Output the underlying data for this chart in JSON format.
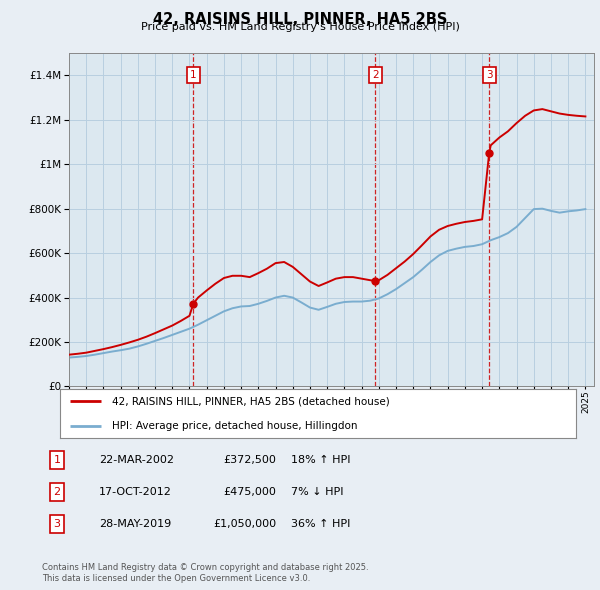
{
  "title": "42, RAISINS HILL, PINNER, HA5 2BS",
  "subtitle": "Price paid vs. HM Land Registry's House Price Index (HPI)",
  "legend_label_red": "42, RAISINS HILL, PINNER, HA5 2BS (detached house)",
  "legend_label_blue": "HPI: Average price, detached house, Hillingdon",
  "footer_line1": "Contains HM Land Registry data © Crown copyright and database right 2025.",
  "footer_line2": "This data is licensed under the Open Government Licence v3.0.",
  "sale_events": [
    {
      "num": 1,
      "date": "22-MAR-2002",
      "price": 372500,
      "pct": "18%",
      "dir": "↑",
      "year_x": 2002.22
    },
    {
      "num": 2,
      "date": "17-OCT-2012",
      "price": 475000,
      "pct": "7%",
      "dir": "↓",
      "year_x": 2012.79
    },
    {
      "num": 3,
      "date": "28-MAY-2019",
      "price": 1050000,
      "pct": "36%",
      "dir": "↑",
      "year_x": 2019.41
    }
  ],
  "red_line_color": "#cc0000",
  "blue_line_color": "#7aadcf",
  "background_color": "#e8eef4",
  "plot_bg_color": "#dce8f0",
  "grid_color": "#b8cfe0",
  "sale_marker_color": "#cc0000",
  "dashed_line_color": "#cc0000",
  "ylim": [
    0,
    1500000
  ],
  "xlim_start": 1995,
  "xlim_end": 2025.5,
  "hpi_data": {
    "years": [
      1995.0,
      1995.5,
      1996.0,
      1996.5,
      1997.0,
      1997.5,
      1998.0,
      1998.5,
      1999.0,
      1999.5,
      2000.0,
      2000.5,
      2001.0,
      2001.5,
      2002.0,
      2002.5,
      2003.0,
      2003.5,
      2004.0,
      2004.5,
      2005.0,
      2005.5,
      2006.0,
      2006.5,
      2007.0,
      2007.5,
      2008.0,
      2008.5,
      2009.0,
      2009.5,
      2010.0,
      2010.5,
      2011.0,
      2011.5,
      2012.0,
      2012.5,
      2013.0,
      2013.5,
      2014.0,
      2014.5,
      2015.0,
      2015.5,
      2016.0,
      2016.5,
      2017.0,
      2017.5,
      2018.0,
      2018.5,
      2019.0,
      2019.5,
      2020.0,
      2020.5,
      2021.0,
      2021.5,
      2022.0,
      2022.5,
      2023.0,
      2023.5,
      2024.0,
      2024.5,
      2025.0
    ],
    "values": [
      130000,
      133000,
      137000,
      143000,
      150000,
      157000,
      163000,
      170000,
      180000,
      192000,
      205000,
      218000,
      232000,
      246000,
      260000,
      278000,
      298000,
      318000,
      338000,
      352000,
      360000,
      362000,
      372000,
      385000,
      400000,
      408000,
      400000,
      378000,
      355000,
      345000,
      358000,
      372000,
      380000,
      382000,
      382000,
      386000,
      396000,
      415000,
      438000,
      465000,
      492000,
      525000,
      560000,
      590000,
      610000,
      620000,
      628000,
      632000,
      640000,
      658000,
      672000,
      690000,
      718000,
      758000,
      798000,
      800000,
      790000,
      782000,
      788000,
      792000,
      798000
    ]
  },
  "red_line_data": {
    "years": [
      1995.0,
      1995.5,
      1996.0,
      1996.5,
      1997.0,
      1997.5,
      1998.0,
      1998.5,
      1999.0,
      1999.5,
      2000.0,
      2000.5,
      2001.0,
      2001.5,
      2002.0,
      2002.22,
      2002.5,
      2003.0,
      2003.5,
      2004.0,
      2004.5,
      2005.0,
      2005.5,
      2006.0,
      2006.5,
      2007.0,
      2007.5,
      2008.0,
      2008.5,
      2009.0,
      2009.5,
      2010.0,
      2010.5,
      2011.0,
      2011.5,
      2012.0,
      2012.5,
      2012.79,
      2013.0,
      2013.5,
      2014.0,
      2014.5,
      2015.0,
      2015.5,
      2016.0,
      2016.5,
      2017.0,
      2017.5,
      2018.0,
      2018.5,
      2019.0,
      2019.41,
      2019.5,
      2020.0,
      2020.5,
      2021.0,
      2021.5,
      2022.0,
      2022.5,
      2023.0,
      2023.5,
      2024.0,
      2024.5,
      2025.0
    ],
    "values": [
      143000,
      147000,
      152000,
      160000,
      168000,
      177000,
      187000,
      198000,
      210000,
      224000,
      240000,
      257000,
      274000,
      295000,
      318000,
      372500,
      400000,
      432000,
      462000,
      488000,
      498000,
      498000,
      492000,
      510000,
      530000,
      555000,
      560000,
      538000,
      505000,
      472000,
      452000,
      468000,
      485000,
      492000,
      492000,
      485000,
      478000,
      475000,
      478000,
      502000,
      532000,
      562000,
      596000,
      635000,
      675000,
      705000,
      722000,
      732000,
      740000,
      745000,
      752000,
      1050000,
      1085000,
      1120000,
      1148000,
      1185000,
      1218000,
      1242000,
      1248000,
      1238000,
      1228000,
      1222000,
      1218000,
      1215000
    ]
  }
}
